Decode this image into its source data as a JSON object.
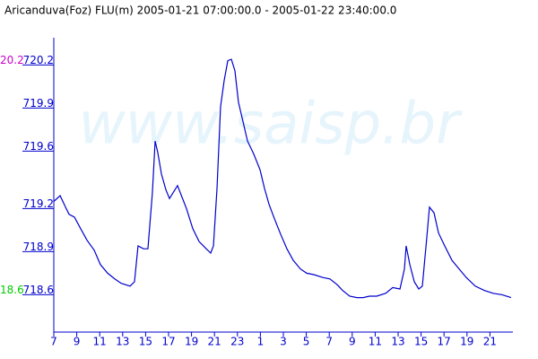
{
  "chart_data": {
    "type": "line",
    "title": "Aricanduva(Foz) FLU(m) 2005-01-21 07:00:00.0 - 2005-01-22 23:40:00.0",
    "watermark": "www.saisp.br",
    "max_label": "20.2",
    "max_label_color": "#cc00cc",
    "min_label": "18.6",
    "min_label_color": "#00cc00",
    "axis_color": "#0000cc",
    "xlim": [
      0,
      40
    ],
    "ylim": [
      718.34,
      720.39
    ],
    "xticks": [
      {
        "value": 0,
        "label": "7"
      },
      {
        "value": 2,
        "label": "9"
      },
      {
        "value": 4,
        "label": "11"
      },
      {
        "value": 6,
        "label": "13"
      },
      {
        "value": 8,
        "label": "15"
      },
      {
        "value": 10,
        "label": "17"
      },
      {
        "value": 12,
        "label": "19"
      },
      {
        "value": 14,
        "label": "21"
      },
      {
        "value": 16,
        "label": "23"
      },
      {
        "value": 18,
        "label": "1"
      },
      {
        "value": 20,
        "label": "3"
      },
      {
        "value": 22,
        "label": "5"
      },
      {
        "value": 24,
        "label": "7"
      },
      {
        "value": 26,
        "label": "9"
      },
      {
        "value": 28,
        "label": "11"
      },
      {
        "value": 30,
        "label": "13"
      },
      {
        "value": 32,
        "label": "15"
      },
      {
        "value": 34,
        "label": "17"
      },
      {
        "value": 36,
        "label": "19"
      },
      {
        "value": 38,
        "label": "21"
      }
    ],
    "yticks": [
      718.6,
      718.9,
      719.2,
      719.6,
      719.9,
      720.2
    ],
    "series": [
      {
        "color": "#0000cc",
        "x": [
          0,
          0.55,
          1.02,
          1.33,
          1.8,
          2.34,
          2.89,
          3.52,
          4.06,
          4.69,
          5.31,
          5.86,
          6.64,
          7.03,
          7.34,
          7.81,
          8.2,
          8.59,
          8.83,
          9.06,
          9.38,
          9.77,
          10.08,
          10.39,
          10.78,
          11.17,
          11.56,
          12.11,
          12.66,
          13.28,
          13.67,
          13.91,
          14.22,
          14.53,
          14.84,
          15.16,
          15.47,
          15.78,
          16.09,
          16.56,
          16.88,
          17.42,
          17.97,
          18.36,
          18.75,
          19.22,
          19.77,
          20.31,
          20.86,
          21.48,
          22.03,
          22.66,
          23.44,
          24.06,
          24.69,
          25.16,
          25.78,
          26.41,
          26.95,
          27.5,
          28.13,
          28.91,
          29.53,
          30.16,
          30.55,
          30.7,
          31.02,
          31.41,
          31.8,
          32.11,
          32.5,
          32.73,
          33.13,
          33.52,
          34.06,
          34.69,
          35.31,
          35.94,
          36.72,
          37.5,
          38.28,
          39.06,
          39.84
        ],
        "values": [
          719.25,
          719.29,
          719.21,
          719.16,
          719.14,
          719.06,
          718.98,
          718.91,
          718.81,
          718.75,
          718.71,
          718.68,
          718.66,
          718.69,
          718.94,
          718.92,
          718.92,
          719.31,
          719.67,
          719.59,
          719.44,
          719.33,
          719.27,
          719.31,
          719.36,
          719.28,
          719.2,
          719.06,
          718.97,
          718.92,
          718.89,
          718.94,
          719.34,
          719.91,
          720.09,
          720.23,
          720.24,
          720.16,
          719.94,
          719.78,
          719.67,
          719.58,
          719.47,
          719.34,
          719.23,
          719.13,
          719.02,
          718.92,
          718.84,
          718.78,
          718.75,
          718.74,
          718.72,
          718.71,
          718.67,
          718.63,
          718.59,
          718.58,
          718.58,
          718.59,
          718.59,
          718.61,
          718.65,
          718.64,
          718.78,
          718.94,
          718.81,
          718.69,
          718.64,
          718.66,
          719.0,
          719.21,
          719.17,
          719.03,
          718.94,
          718.84,
          718.78,
          718.72,
          718.66,
          718.63,
          718.61,
          718.6,
          718.58
        ]
      }
    ]
  }
}
